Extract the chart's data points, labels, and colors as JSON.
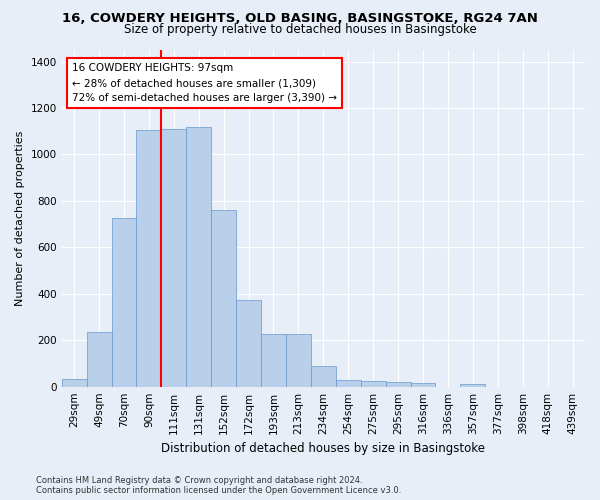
{
  "title_line1": "16, COWDERY HEIGHTS, OLD BASING, BASINGSTOKE, RG24 7AN",
  "title_line2": "Size of property relative to detached houses in Basingstoke",
  "xlabel": "Distribution of detached houses by size in Basingstoke",
  "ylabel": "Number of detached properties",
  "categories": [
    "29sqm",
    "49sqm",
    "70sqm",
    "90sqm",
    "111sqm",
    "131sqm",
    "152sqm",
    "172sqm",
    "193sqm",
    "213sqm",
    "234sqm",
    "254sqm",
    "275sqm",
    "295sqm",
    "316sqm",
    "336sqm",
    "357sqm",
    "377sqm",
    "398sqm",
    "418sqm",
    "439sqm"
  ],
  "bar_values": [
    35,
    235,
    725,
    1105,
    1110,
    1120,
    760,
    375,
    225,
    225,
    90,
    30,
    25,
    22,
    15,
    0,
    12,
    0,
    0,
    0,
    0
  ],
  "bar_color": "#b8d0ea",
  "bar_edge_color": "#6699cc",
  "vline_color": "red",
  "annotation_text": "16 COWDERY HEIGHTS: 97sqm\n← 28% of detached houses are smaller (1,309)\n72% of semi-detached houses are larger (3,390) →",
  "annotation_box_color": "white",
  "annotation_box_edge": "red",
  "ylim": [
    0,
    1450
  ],
  "yticks": [
    0,
    200,
    400,
    600,
    800,
    1000,
    1200,
    1400
  ],
  "footer_line1": "Contains HM Land Registry data © Crown copyright and database right 2024.",
  "footer_line2": "Contains public sector information licensed under the Open Government Licence v3.0.",
  "bg_color": "#e8eef8",
  "plot_bg_color": "#e8eef8",
  "title1_fontsize": 9.5,
  "title2_fontsize": 8.5,
  "ylabel_fontsize": 8,
  "xlabel_fontsize": 8.5,
  "tick_fontsize": 7.5,
  "annotation_fontsize": 7.5,
  "footer_fontsize": 6.0
}
